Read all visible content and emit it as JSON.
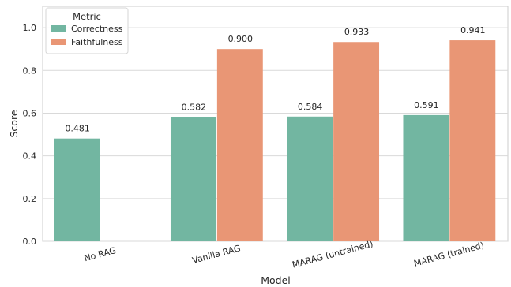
{
  "chart_data": {
    "type": "bar",
    "categories": [
      "No RAG",
      "Vanilla RAG",
      "MARAG (untrained)",
      "MARAG (trained)"
    ],
    "series": [
      {
        "name": "Correctness",
        "values": [
          0.481,
          0.582,
          0.584,
          0.591
        ],
        "labels": [
          "0.481",
          "0.582",
          "0.584",
          "0.591"
        ],
        "color": "#72b6a1"
      },
      {
        "name": "Faithfulness",
        "values": [
          null,
          0.9,
          0.933,
          0.941
        ],
        "labels": [
          "",
          "0.900",
          "0.933",
          "0.941"
        ],
        "color": "#e99675"
      }
    ],
    "xlabel": "Model",
    "ylabel": "Score",
    "ylim": [
      0,
      1.1
    ],
    "yticks": [
      0.0,
      0.2,
      0.4,
      0.6,
      0.8,
      1.0
    ],
    "ytick_labels": [
      "0.0",
      "0.2",
      "0.4",
      "0.6",
      "0.8",
      "1.0"
    ],
    "grid": true,
    "legend": {
      "title": "Metric",
      "placement": "top-left"
    }
  }
}
